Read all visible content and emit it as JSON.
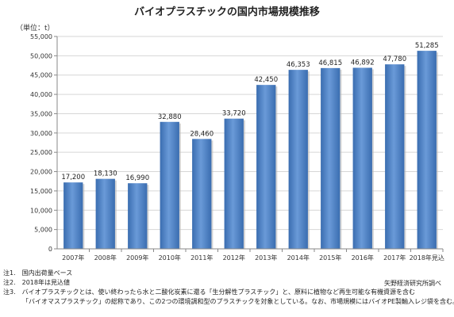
{
  "chart_data": {
    "type": "bar",
    "title": "バイオプラスチックの国内市場規模推移",
    "unit": "（単位：t）",
    "categories": [
      "2007年",
      "2008年",
      "2009年",
      "2010年",
      "2011年",
      "2012年",
      "2013年",
      "2014年",
      "2015年",
      "2016年",
      "2017年",
      "2018年見込"
    ],
    "values": [
      17200,
      18130,
      16990,
      32880,
      28460,
      33720,
      42450,
      46353,
      46815,
      46892,
      47780,
      51285
    ],
    "data_labels": [
      "17,200",
      "18,130",
      "16,990",
      "32,880",
      "28,460",
      "33,720",
      "42,450",
      "46,353",
      "46,815",
      "46,892",
      "47,780",
      "51,285"
    ],
    "ylim": [
      0,
      55000
    ],
    "yticks": [
      0,
      5000,
      10000,
      15000,
      20000,
      25000,
      30000,
      35000,
      40000,
      45000,
      50000,
      55000
    ],
    "ytick_labels": [
      "0",
      "5,000",
      "10,000",
      "15,000",
      "20,000",
      "25,000",
      "30,000",
      "35,000",
      "40,000",
      "45,000",
      "50,000",
      "55,000"
    ],
    "grid": true,
    "bar_color": "#4a7fc4"
  },
  "notes": [
    "注1.　国内出荷量ベース",
    "注2.　2018年は見込値",
    "注3.　バイオプラスチックとは、使い終わったら水と二酸化炭素に還る「生分解性プラスチック」と、原料に植物など再生可能な有機資源を含む",
    "「バイオマスプラスチック」の総称であり、この2つの環境調和型のプラスチックを対象としている。なお、市場規模にはバイオPE製輸入レジ袋を含む。"
  ],
  "source": "矢野経済研究所調べ"
}
